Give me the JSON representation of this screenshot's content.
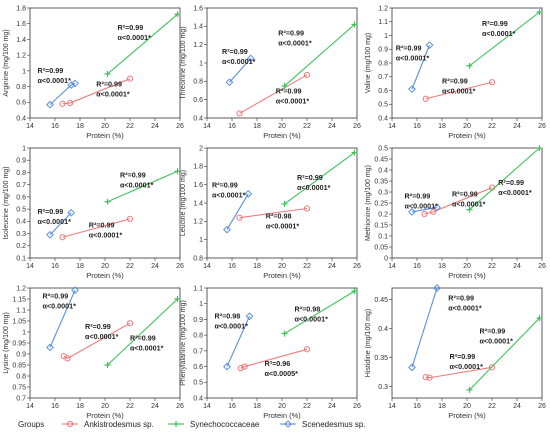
{
  "legend": {
    "title": "Groups",
    "items": [
      {
        "label": "Ankistrodesmus sp.",
        "color": "#f07a7a",
        "marker": "circle"
      },
      {
        "label": "Synechococcaceae",
        "color": "#3ec15a",
        "marker": "plus"
      },
      {
        "label": "Scenedesmus sp.",
        "color": "#5b8fe3",
        "marker": "diamond"
      }
    ]
  },
  "chart_data": [
    {
      "type": "scatter",
      "ylabel": "Arginine (mg/100 mg)",
      "xlabel": "Protein (%)",
      "xlim": [
        14,
        26
      ],
      "xticks": [
        14,
        16,
        18,
        20,
        22,
        24,
        26
      ],
      "ylim": [
        0.4,
        1.8
      ],
      "yticks": [
        "0.4",
        "0.6",
        "0.8",
        "1",
        "1.2",
        "1.4",
        "1.6",
        "1.8"
      ],
      "series": [
        {
          "name": "Ankistrodesmus sp.",
          "points": [
            [
              16.6,
              0.58
            ],
            [
              17.2,
              0.59
            ],
            [
              22.0,
              0.9
            ]
          ]
        },
        {
          "name": "Synechococcaceae",
          "points": [
            [
              20.2,
              0.96
            ],
            [
              25.8,
              1.72
            ]
          ]
        },
        {
          "name": "Scenedesmus sp.",
          "points": [
            [
              15.6,
              0.57
            ],
            [
              17.3,
              0.82
            ],
            [
              17.6,
              0.84
            ]
          ]
        }
      ],
      "annotations": [
        {
          "r2": "R²=0.99",
          "p": "α<0.0001*",
          "x": 21.0,
          "y": 1.52
        },
        {
          "r2": "R²=0.99",
          "p": "α<0.0001*",
          "x": 19.3,
          "y": 0.8
        },
        {
          "r2": "R²=0.99",
          "p": "α<0.0001*",
          "x": 14.6,
          "y": 0.97
        }
      ]
    },
    {
      "type": "scatter",
      "ylabel": "Threonine (mg/100 mg)",
      "xlabel": "Protein (%)",
      "xlim": [
        14,
        26
      ],
      "xticks": [
        14,
        16,
        18,
        20,
        22,
        24,
        26
      ],
      "ylim": [
        0.4,
        1.6
      ],
      "yticks": [
        "0.4",
        "0.6",
        "0.8",
        "1",
        "1.2",
        "1.4",
        "1.6"
      ],
      "series": [
        {
          "name": "Ankistrodesmus sp.",
          "points": [
            [
              16.6,
              0.45
            ],
            [
              22.0,
              0.87
            ]
          ]
        },
        {
          "name": "Synechococcaceae",
          "points": [
            [
              20.2,
              0.75
            ],
            [
              25.8,
              1.42
            ]
          ]
        },
        {
          "name": "Scenedesmus sp.",
          "points": [
            [
              15.8,
              0.79
            ],
            [
              17.5,
              1.05
            ]
          ]
        }
      ],
      "annotations": [
        {
          "r2": "R²=0.99",
          "p": "α<0.0001*",
          "x": 19.7,
          "y": 1.3
        },
        {
          "r2": "R²=0.99",
          "p": "α<0.0001*",
          "x": 15.2,
          "y": 1.1
        },
        {
          "r2": "R²=0.99",
          "p": "α<0.0001*",
          "x": 19.5,
          "y": 0.67
        }
      ]
    },
    {
      "type": "scatter",
      "ylabel": "Valine (mg/100 mg)",
      "xlabel": "Protein (%)",
      "xlim": [
        14,
        26
      ],
      "xticks": [
        14,
        16,
        18,
        20,
        22,
        24,
        26
      ],
      "ylim": [
        0.4,
        1.2
      ],
      "yticks": [
        "0.4",
        "0.5",
        "0.6",
        "0.7",
        "0.8",
        "0.9",
        "1",
        "1.1",
        "1.2"
      ],
      "series": [
        {
          "name": "Ankistrodesmus sp.",
          "points": [
            [
              16.7,
              0.54
            ],
            [
              22.0,
              0.66
            ]
          ]
        },
        {
          "name": "Synechococcaceae",
          "points": [
            [
              20.2,
              0.78
            ],
            [
              25.8,
              1.17
            ]
          ]
        },
        {
          "name": "Scenedesmus sp.",
          "points": [
            [
              15.6,
              0.61
            ],
            [
              17.0,
              0.93
            ]
          ]
        }
      ],
      "annotations": [
        {
          "r2": "R²=0.99",
          "p": "α<0.0001*",
          "x": 21.2,
          "y": 1.07
        },
        {
          "r2": "R²=0.99",
          "p": "α<0.0001*",
          "x": 14.3,
          "y": 0.89
        },
        {
          "r2": "R²=0.99",
          "p": "α<0.0001*",
          "x": 18.0,
          "y": 0.65
        }
      ]
    },
    {
      "type": "scatter",
      "ylabel": "Isoleucine (mg/100 mg)",
      "xlabel": "Protein (%)",
      "xlim": [
        14,
        26
      ],
      "xticks": [
        14,
        16,
        18,
        20,
        22,
        24,
        26
      ],
      "ylim": [
        0.1,
        1.0
      ],
      "yticks": [
        "0.1",
        "0.2",
        "0.3",
        "0.4",
        "0.5",
        "0.6",
        "0.7",
        "0.8",
        "0.9",
        "1"
      ],
      "series": [
        {
          "name": "Ankistrodesmus sp.",
          "points": [
            [
              16.6,
              0.27
            ],
            [
              22.0,
              0.42
            ]
          ]
        },
        {
          "name": "Synechococcaceae",
          "points": [
            [
              20.2,
              0.56
            ],
            [
              25.8,
              0.81
            ]
          ]
        },
        {
          "name": "Scenedesmus sp.",
          "points": [
            [
              15.6,
              0.29
            ],
            [
              17.3,
              0.47
            ]
          ]
        }
      ],
      "annotations": [
        {
          "r2": "R²=0.99",
          "p": "α<0.0001*",
          "x": 21.2,
          "y": 0.76
        },
        {
          "r2": "R²=0.99",
          "p": "α<0.0001*",
          "x": 14.6,
          "y": 0.46
        },
        {
          "r2": "R²=0.99",
          "p": "α<0.0001*",
          "x": 18.7,
          "y": 0.35
        }
      ]
    },
    {
      "type": "scatter",
      "ylabel": "Leucine (mg/100 mg)",
      "xlabel": "Protein (%)",
      "xlim": [
        14,
        26
      ],
      "xticks": [
        14,
        16,
        18,
        20,
        22,
        24,
        26
      ],
      "ylim": [
        0.8,
        2.0
      ],
      "yticks": [
        "0.8",
        "1",
        "1.2",
        "1.4",
        "1.6",
        "1.8",
        "2"
      ],
      "series": [
        {
          "name": "Ankistrodesmus sp.",
          "points": [
            [
              16.6,
              1.24
            ],
            [
              22.0,
              1.34
            ]
          ]
        },
        {
          "name": "Synechococcaceae",
          "points": [
            [
              20.2,
              1.39
            ],
            [
              25.8,
              1.95
            ]
          ]
        },
        {
          "name": "Scenedesmus sp.",
          "points": [
            [
              15.6,
              1.11
            ],
            [
              17.3,
              1.5
            ]
          ]
        }
      ],
      "annotations": [
        {
          "r2": "R²=0.99",
          "p": "α<0.0001*",
          "x": 21.2,
          "y": 1.65
        },
        {
          "r2": "R²=0.99",
          "p": "α<0.0001*",
          "x": 14.4,
          "y": 1.57
        },
        {
          "r2": "R²=0.98",
          "p": "α<0.0001*",
          "x": 18.7,
          "y": 1.23
        }
      ]
    },
    {
      "type": "scatter",
      "ylabel": "Methionine (mg/100 mg)",
      "xlabel": "Protein (%)",
      "xlim": [
        14,
        26
      ],
      "xticks": [
        14,
        16,
        18,
        20,
        22,
        24,
        26
      ],
      "ylim": [
        0.0,
        0.5
      ],
      "yticks": [
        "0",
        "0.05",
        "0.1",
        "0.15",
        "0.2",
        "0.25",
        "0.3",
        "0.35",
        "0.4",
        "0.45",
        "0.5"
      ],
      "series": [
        {
          "name": "Ankistrodesmus sp.",
          "points": [
            [
              16.6,
              0.2
            ],
            [
              17.3,
              0.21
            ],
            [
              22.0,
              0.32
            ]
          ]
        },
        {
          "name": "Synechococcaceae",
          "points": [
            [
              20.2,
              0.22
            ],
            [
              25.8,
              0.5
            ]
          ]
        },
        {
          "name": "Scenedesmus sp.",
          "points": [
            [
              15.6,
              0.21
            ],
            [
              17.6,
              0.23
            ]
          ]
        }
      ],
      "annotations": [
        {
          "r2": "R²=0.99",
          "p": "α<0.0001*",
          "x": 15.0,
          "y": 0.27
        },
        {
          "r2": "R²=0.99",
          "p": "α<0.0001*",
          "x": 18.8,
          "y": 0.28
        },
        {
          "r2": "R²=0.99",
          "p": "α<0.0001*",
          "x": 22.5,
          "y": 0.332
        }
      ]
    },
    {
      "type": "scatter",
      "ylabel": "Lysine (mg/100 mg)",
      "xlabel": "Protein (%)",
      "xlim": [
        14,
        26
      ],
      "xticks": [
        14,
        16,
        18,
        20,
        22,
        24,
        26
      ],
      "ylim": [
        0.7,
        1.2
      ],
      "yticks": [
        "0.7",
        "0.75",
        "0.8",
        "0.85",
        "0.9",
        "0.95",
        "1",
        "1.05",
        "1.1",
        "1.15",
        "1.2"
      ],
      "series": [
        {
          "name": "Ankistrodesmus sp.",
          "points": [
            [
              16.7,
              0.89
            ],
            [
              17.0,
              0.88
            ],
            [
              22.0,
              1.04
            ]
          ]
        },
        {
          "name": "Synechococcaceae",
          "points": [
            [
              20.2,
              0.85
            ],
            [
              25.8,
              1.15
            ]
          ]
        },
        {
          "name": "Scenedesmus sp.",
          "points": [
            [
              15.6,
              0.93
            ],
            [
              17.6,
              1.19
            ]
          ]
        }
      ],
      "annotations": [
        {
          "r2": "R²=0.99",
          "p": "α<0.0001*",
          "x": 15.0,
          "y": 1.152
        },
        {
          "r2": "R²=0.99",
          "p": "α<0.0001*",
          "x": 18.4,
          "y": 1.013
        },
        {
          "r2": "R²=0.99",
          "p": "α<0.0001*",
          "x": 22.0,
          "y": 0.962
        }
      ]
    },
    {
      "type": "scatter",
      "ylabel": "Phenylalanine (mg/100 mg)",
      "xlabel": "Protein (%)",
      "xlim": [
        14,
        26
      ],
      "xticks": [
        14,
        16,
        18,
        20,
        22,
        24,
        26
      ],
      "ylim": [
        0.4,
        1.1
      ],
      "yticks": [
        "0.4",
        "0.5",
        "0.6",
        "0.7",
        "0.8",
        "0.9",
        "1",
        "1.1"
      ],
      "series": [
        {
          "name": "Ankistrodesmus sp.",
          "points": [
            [
              16.7,
              0.59
            ],
            [
              17.0,
              0.6
            ],
            [
              22.0,
              0.71
            ]
          ]
        },
        {
          "name": "Synechococcaceae",
          "points": [
            [
              20.2,
              0.81
            ],
            [
              25.8,
              1.08
            ]
          ]
        },
        {
          "name": "Scenedesmus sp.",
          "points": [
            [
              15.6,
              0.6
            ],
            [
              17.4,
              0.92
            ]
          ]
        }
      ],
      "annotations": [
        {
          "r2": "R²=0.98",
          "p": "α<0.0001*",
          "x": 14.6,
          "y": 0.905
        },
        {
          "r2": "R²=0.98",
          "p": "α<0.0001*",
          "x": 21.0,
          "y": 0.95
        },
        {
          "r2": "R²=0.96",
          "p": "α<0.0005*",
          "x": 18.6,
          "y": 0.605
        }
      ]
    },
    {
      "type": "scatter",
      "ylabel": "Histidine (mg/100 mg)",
      "xlabel": "Protein (%)",
      "xlim": [
        14,
        26
      ],
      "xticks": [
        14,
        16,
        18,
        20,
        22,
        24,
        26
      ],
      "ylim": [
        0.28,
        0.47
      ],
      "yticks": [
        "0.3",
        "0.35",
        "0.4",
        "0.45"
      ],
      "series": [
        {
          "name": "Ankistrodesmus sp.",
          "points": [
            [
              16.7,
              0.316
            ],
            [
              17.0,
              0.315
            ],
            [
              22.0,
              0.333
            ]
          ]
        },
        {
          "name": "Synechococcaceae",
          "points": [
            [
              20.2,
              0.294
            ],
            [
              25.8,
              0.418
            ]
          ]
        },
        {
          "name": "Scenedesmus sp.",
          "points": [
            [
              15.6,
              0.333
            ],
            [
              17.6,
              0.47
            ]
          ]
        }
      ],
      "annotations": [
        {
          "r2": "R²=0.99",
          "p": "α<0.0001*",
          "x": 18.5,
          "y": 0.448
        },
        {
          "r2": "R²=0.99",
          "p": "α<0.0001*",
          "x": 21.0,
          "y": 0.391
        },
        {
          "r2": "R²=0.99",
          "p": "α<0.0001*",
          "x": 18.6,
          "y": 0.347
        }
      ]
    }
  ]
}
